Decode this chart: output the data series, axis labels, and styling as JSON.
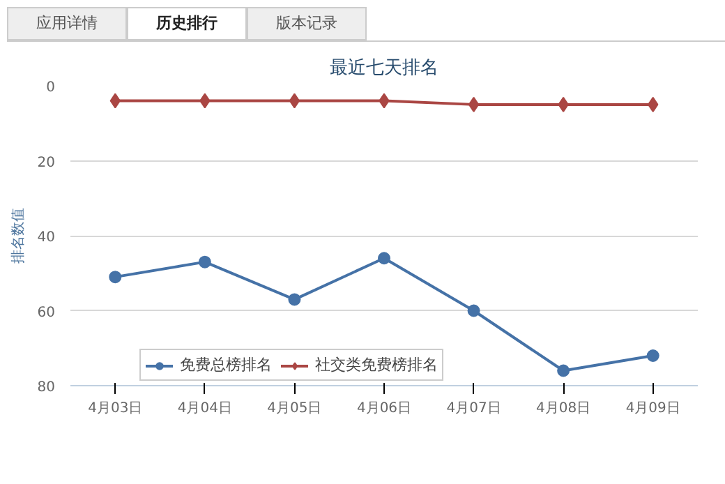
{
  "chart_data": {
    "type": "line",
    "title": "最近七天排名",
    "ylabel": "排名数值",
    "annotations": [
      "应用详情",
      "历史排行",
      "版本记录"
    ],
    "categories": [
      "4月03日",
      "4月04日",
      "4月05日",
      "4月06日",
      "4月07日",
      "4月08日",
      "4月09日"
    ],
    "series": [
      {
        "name": "免费总榜排名",
        "color": "#4572a7",
        "marker": "circle",
        "values": [
          51,
          47,
          57,
          46,
          60,
          76,
          72
        ]
      },
      {
        "name": "社交类免费榜排名",
        "color": "#aa4643",
        "marker": "diamond",
        "values": [
          4,
          4,
          4,
          4,
          5,
          5,
          5
        ]
      }
    ],
    "ylim": [
      80,
      0
    ],
    "yticks": [
      0,
      20,
      40,
      60,
      80
    ],
    "grid": "y",
    "legend": "bottom",
    "line_style": "solid"
  }
}
